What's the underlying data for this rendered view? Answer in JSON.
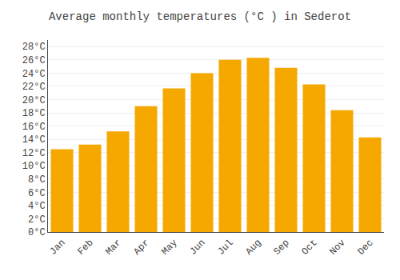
{
  "chart_data": {
    "type": "bar",
    "title": "Average monthly temperatures (°C ) in Sederot",
    "categories": [
      "Jan",
      "Feb",
      "Mar",
      "Apr",
      "May",
      "Jun",
      "Jul",
      "Aug",
      "Sep",
      "Oct",
      "Nov",
      "Dec"
    ],
    "values": [
      12.5,
      13.2,
      15.2,
      19.0,
      21.7,
      24.0,
      26.0,
      26.3,
      24.8,
      22.3,
      18.4,
      14.3
    ],
    "color": "#F5A800",
    "ylim": [
      0,
      29
    ],
    "yticks": [
      {
        "value": 0,
        "label": "0°C"
      },
      {
        "value": 2,
        "label": "2°C"
      },
      {
        "value": 4,
        "label": "4°C"
      },
      {
        "value": 6,
        "label": "6°C"
      },
      {
        "value": 8,
        "label": "8°C"
      },
      {
        "value": 10,
        "label": "10°C"
      },
      {
        "value": 12,
        "label": "12°C"
      },
      {
        "value": 14,
        "label": "14°C"
      },
      {
        "value": 16,
        "label": "16°C"
      },
      {
        "value": 18,
        "label": "18°C"
      },
      {
        "value": 20,
        "label": "20°C"
      },
      {
        "value": 22,
        "label": "22°C"
      },
      {
        "value": 24,
        "label": "24°C"
      },
      {
        "value": 26,
        "label": "26°C"
      },
      {
        "value": 28,
        "label": "28°C"
      }
    ],
    "grid": true
  }
}
